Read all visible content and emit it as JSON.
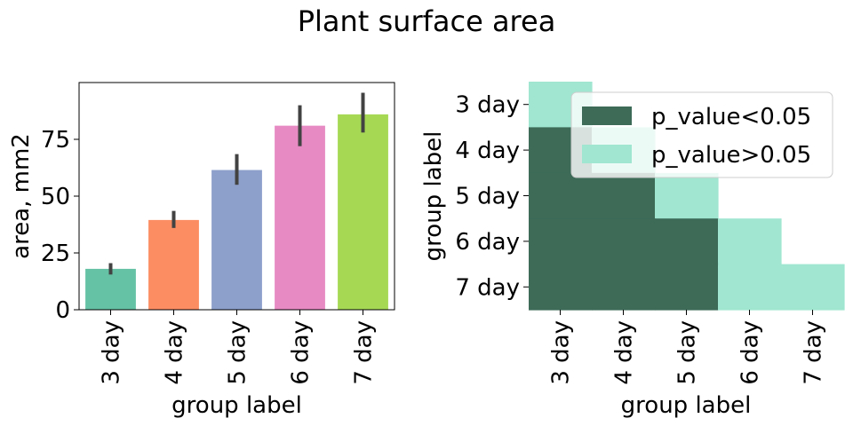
{
  "figure": {
    "title": "Plant surface area"
  },
  "chart_data": [
    {
      "type": "bar",
      "title": "",
      "xlabel": "group label",
      "ylabel": "area, mm2",
      "categories": [
        "3 day",
        "4 day",
        "5 day",
        "6 day",
        "7 day"
      ],
      "values": [
        18,
        39.5,
        61.5,
        81,
        86
      ],
      "error_low": [
        15.5,
        36,
        55,
        72,
        78
      ],
      "error_high": [
        20.5,
        43.5,
        68.5,
        90,
        95.5
      ],
      "colors": [
        "#66c2a5",
        "#fc8d62",
        "#8da0cb",
        "#e78ac3",
        "#a6d854"
      ],
      "ylim": [
        0,
        100
      ],
      "yticks": [
        0,
        25,
        50,
        75
      ],
      "grid": false
    },
    {
      "type": "heatmap",
      "title": "",
      "xlabel": "group label",
      "ylabel": "group label",
      "x_categories": [
        "3 day",
        "4 day",
        "5 day",
        "6 day",
        "7 day"
      ],
      "y_categories": [
        "3 day",
        "4 day",
        "5 day",
        "6 day",
        "7 day"
      ],
      "matrix": [
        [
          1,
          null,
          null,
          null,
          null
        ],
        [
          0,
          1,
          null,
          null,
          null
        ],
        [
          0,
          0,
          1,
          null,
          null
        ],
        [
          0,
          0,
          0,
          1,
          null
        ],
        [
          0,
          0,
          0,
          1,
          1
        ]
      ],
      "legend": {
        "placement": "top-right",
        "entries": [
          {
            "label": "p_value<0.05",
            "color": "#3d6b58"
          },
          {
            "label": "p_value>0.05",
            "color": "#a0e6d0"
          }
        ]
      }
    }
  ]
}
